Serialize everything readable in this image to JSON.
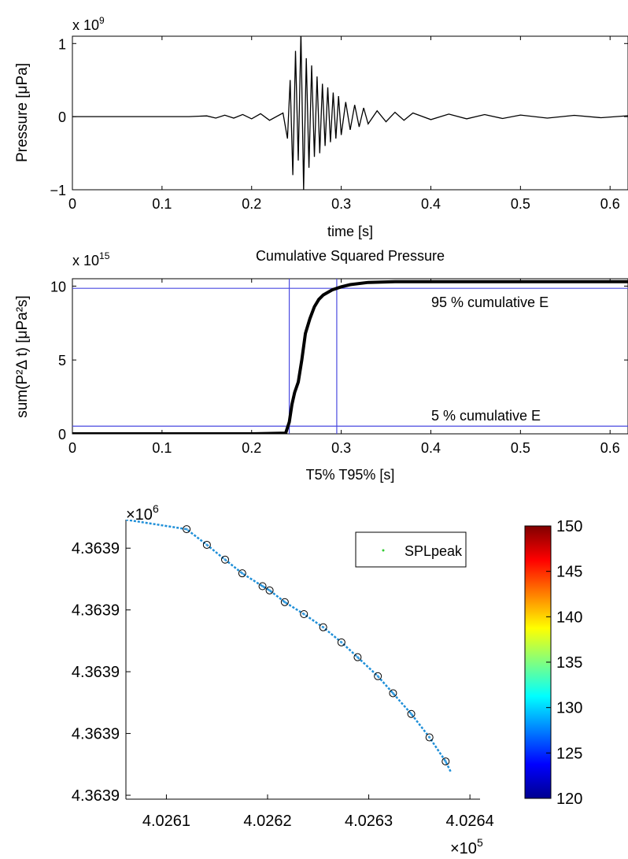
{
  "chart_data": [
    {
      "type": "line",
      "title": "",
      "xlabel": "time [s]",
      "ylabel": "Pressure [μPa]",
      "y_exponent": "x 10",
      "y_exponent_power": "9",
      "xlim": [
        0,
        0.62
      ],
      "ylim": [
        -1,
        1.1
      ],
      "xticks": [
        0,
        0.1,
        0.2,
        0.3,
        0.4,
        0.5,
        0.6
      ],
      "xticklabels": [
        "0",
        "0.1",
        "0.2",
        "0.3",
        "0.4",
        "0.5",
        "0.6"
      ],
      "yticks": [
        -1,
        0,
        1
      ],
      "yticklabels": [
        "−1",
        "0",
        "1"
      ],
      "series": [
        {
          "color": "#000000",
          "x": [
            0,
            0.13,
            0.15,
            0.16,
            0.17,
            0.18,
            0.19,
            0.2,
            0.21,
            0.22,
            0.235,
            0.24,
            0.243,
            0.246,
            0.249,
            0.252,
            0.255,
            0.258,
            0.261,
            0.264,
            0.267,
            0.27,
            0.273,
            0.276,
            0.279,
            0.282,
            0.285,
            0.288,
            0.291,
            0.294,
            0.297,
            0.3,
            0.305,
            0.31,
            0.315,
            0.32,
            0.325,
            0.33,
            0.34,
            0.35,
            0.36,
            0.37,
            0.38,
            0.4,
            0.42,
            0.44,
            0.46,
            0.48,
            0.5,
            0.53,
            0.56,
            0.59,
            0.62
          ],
          "y": [
            0,
            0,
            0.01,
            -0.02,
            0.02,
            -0.02,
            0.03,
            -0.03,
            0.04,
            -0.05,
            0.05,
            -0.3,
            0.5,
            -0.8,
            0.9,
            -0.6,
            1.15,
            -1.0,
            0.8,
            -0.7,
            0.7,
            -0.55,
            0.55,
            -0.5,
            0.45,
            -0.4,
            0.4,
            -0.35,
            0.33,
            -0.3,
            0.28,
            -0.25,
            0.2,
            -0.18,
            0.16,
            -0.14,
            0.12,
            -0.1,
            0.08,
            -0.07,
            0.06,
            -0.05,
            0.05,
            -0.04,
            0.035,
            -0.03,
            0.028,
            -0.025,
            0.022,
            -0.02,
            0.018,
            -0.015,
            0.012
          ]
        }
      ]
    },
    {
      "type": "line",
      "title": "Cumulative Squared Pressure",
      "xlabel": "T5% T95% [s]",
      "ylabel": "sum(P²Δ t) [μPa²s]",
      "y_exponent": "x 10",
      "y_exponent_power": "15",
      "xlim": [
        0,
        0.62
      ],
      "ylim": [
        0,
        10.5
      ],
      "xticks": [
        0,
        0.1,
        0.2,
        0.3,
        0.4,
        0.5,
        0.6
      ],
      "xticklabels": [
        "0",
        "0.1",
        "0.2",
        "0.3",
        "0.4",
        "0.5",
        "0.6"
      ],
      "yticks": [
        0,
        5,
        10
      ],
      "yticklabels": [
        "0",
        "5",
        "10"
      ],
      "series": [
        {
          "color": "#000000",
          "x": [
            0,
            0.2,
            0.238,
            0.242,
            0.245,
            0.248,
            0.252,
            0.256,
            0.26,
            0.265,
            0.27,
            0.275,
            0.28,
            0.29,
            0.3,
            0.31,
            0.33,
            0.36,
            0.62
          ],
          "y": [
            0,
            0,
            0.05,
            0.8,
            2.0,
            2.8,
            3.5,
            5.0,
            6.8,
            7.8,
            8.6,
            9.1,
            9.4,
            9.75,
            9.95,
            10.1,
            10.25,
            10.3,
            10.3
          ]
        }
      ],
      "threshold_lines": {
        "horizontal": [
          0.52,
          9.85
        ],
        "vertical": [
          0.242,
          0.295
        ],
        "color": "#4a4ae0"
      },
      "annotations": [
        "95 % cumulative E",
        "5 % cumulative E"
      ]
    },
    {
      "type": "scatter",
      "title": "",
      "xlabel": "",
      "ylabel": "",
      "x_exponent": "×10",
      "x_exponent_power": "5",
      "y_exponent": "×10",
      "y_exponent_power": "6",
      "xlim": [
        4.02606,
        4.02641
      ],
      "ylim": [
        0,
        1
      ],
      "xticks": [
        4.0261,
        4.0262,
        4.0263,
        4.0264
      ],
      "xticklabels": [
        "4.0261",
        "4.0262",
        "4.0263",
        "4.0264"
      ],
      "yticks": [
        0.014,
        0.235,
        0.456,
        0.677,
        0.898
      ],
      "yticklabels": [
        "4.3639",
        "4.3639",
        "4.3639",
        "4.3639",
        "4.3639"
      ],
      "legend": {
        "label": "SPLpeak",
        "placement": "top-right"
      },
      "colorbar": {
        "min": 120,
        "max": 150,
        "ticks": [
          120,
          125,
          130,
          135,
          140,
          145,
          150
        ],
        "ticklabels": [
          "120",
          "125",
          "130",
          "135",
          "140",
          "145",
          "150"
        ]
      },
      "series": [
        {
          "name": "SPLpeak",
          "x": [
            4.02606,
            4.02612,
            4.02614,
            4.026158,
            4.026175,
            4.026195,
            4.026202,
            4.026217,
            4.026236,
            4.026255,
            4.026273,
            4.026289,
            4.026309,
            4.026324,
            4.026342,
            4.02636,
            4.026376,
            4.026381
          ],
          "y": [
            1.0,
            0.966,
            0.91,
            0.857,
            0.808,
            0.762,
            0.747,
            0.705,
            0.662,
            0.615,
            0.561,
            0.508,
            0.44,
            0.379,
            0.305,
            0.221,
            0.135,
            0.098
          ],
          "spl": [
            126,
            126,
            127,
            126,
            127,
            128,
            127,
            126,
            128,
            127,
            129,
            128,
            127,
            126,
            127,
            128,
            126,
            125
          ]
        }
      ],
      "markers_x": [
        4.02612,
        4.02614,
        4.026158,
        4.026175,
        4.026195,
        4.026202,
        4.026217,
        4.026236,
        4.026255,
        4.026273,
        4.026289,
        4.026309,
        4.026324,
        4.026342,
        4.02636,
        4.026376
      ],
      "markers_y": [
        0.966,
        0.91,
        0.857,
        0.808,
        0.762,
        0.747,
        0.705,
        0.662,
        0.615,
        0.561,
        0.508,
        0.44,
        0.379,
        0.305,
        0.221,
        0.135
      ]
    }
  ]
}
